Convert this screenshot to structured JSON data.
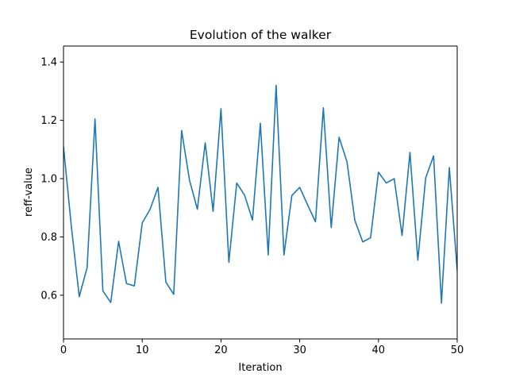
{
  "chart_data": {
    "type": "line",
    "title": "Evolution of the walker",
    "xlabel": "Iteration",
    "ylabel": "reff-value",
    "xlim": [
      0,
      50
    ],
    "ylim": [
      0.45,
      1.455
    ],
    "xticks": [
      0,
      10,
      20,
      30,
      40,
      50
    ],
    "xtick_labels": [
      "0",
      "10",
      "20",
      "30",
      "40",
      "50"
    ],
    "yticks": [
      0.6,
      0.8,
      1.0,
      1.2,
      1.4
    ],
    "ytick_labels": [
      "0.6",
      "0.8",
      "1.0",
      "1.2",
      "1.4"
    ],
    "grid": false,
    "line_color": "#1f77b4",
    "series": [
      {
        "x": [
          0,
          1,
          2,
          3,
          4,
          5,
          6,
          7,
          8,
          9,
          10,
          11,
          12,
          13,
          14,
          15,
          16,
          17,
          18,
          19,
          20,
          21,
          22,
          23,
          24,
          25,
          26,
          27,
          28,
          29,
          30,
          31,
          32,
          33,
          34,
          35,
          36,
          37,
          38,
          39,
          40,
          41,
          42,
          43,
          44,
          45,
          46,
          47,
          48,
          49,
          50
        ],
        "values": [
          1.11,
          0.835,
          0.595,
          0.695,
          1.205,
          0.615,
          0.575,
          0.785,
          0.64,
          0.632,
          0.848,
          0.895,
          0.97,
          0.645,
          0.603,
          1.165,
          0.995,
          0.895,
          1.123,
          0.888,
          1.24,
          0.713,
          0.985,
          0.943,
          0.858,
          1.19,
          0.738,
          1.32,
          0.738,
          0.942,
          0.97,
          0.91,
          0.852,
          1.243,
          0.832,
          1.142,
          1.058,
          0.857,
          0.783,
          0.797,
          1.022,
          0.985,
          1.0,
          0.805,
          1.09,
          0.72,
          1.003,
          1.078,
          0.573,
          1.038,
          0.685
        ]
      }
    ]
  }
}
